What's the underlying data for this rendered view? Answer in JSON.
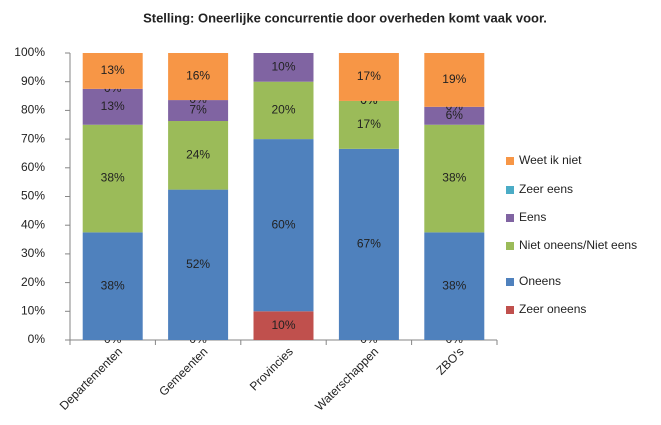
{
  "chart_data": {
    "type": "stacked_bar",
    "title": "Stelling: Oneerlijke concurrentie door overheden komt vaak voor.",
    "categories": [
      "Departementen",
      "Gemeenten",
      "Provincies",
      "Waterschappen",
      "ZBO's"
    ],
    "ylim": [
      0,
      100
    ],
    "yticks": [
      {
        "value": 0,
        "label": "0%"
      },
      {
        "value": 10,
        "label": "10%"
      },
      {
        "value": 20,
        "label": "20%"
      },
      {
        "value": 30,
        "label": "30%"
      },
      {
        "value": 40,
        "label": "40%"
      },
      {
        "value": 50,
        "label": "50%"
      },
      {
        "value": 60,
        "label": "60%"
      },
      {
        "value": 70,
        "label": "70%"
      },
      {
        "value": 80,
        "label": "80%"
      },
      {
        "value": 90,
        "label": "90%"
      },
      {
        "value": 100,
        "label": "100%"
      }
    ],
    "grid": false,
    "legend": "right",
    "series": [
      {
        "name": "Zeer oneens",
        "color": "#c0504d",
        "values": [
          0,
          0,
          10,
          0,
          0
        ],
        "value_labels": [
          "0%",
          "0%",
          "10%",
          "0%",
          "0%"
        ]
      },
      {
        "name": "Oneens",
        "color": "#4f81bd",
        "values": [
          37.5,
          52.4,
          60,
          66.6,
          37.5
        ],
        "value_labels": [
          "38%",
          "52%",
          "60%",
          "67%",
          "38%"
        ]
      },
      {
        "name": "Niet oneens/Niet eens",
        "color": "#9bbb59",
        "values": [
          37.5,
          23.9,
          20,
          16.7,
          37.5
        ],
        "value_labels": [
          "38%",
          "24%",
          "20%",
          "17%",
          "38%"
        ]
      },
      {
        "name": "Eens",
        "color": "#8064a2",
        "values": [
          12.5,
          7.3,
          10,
          0,
          6.25
        ],
        "value_labels": [
          "13%",
          "7%",
          "10%",
          "0%",
          "6%"
        ]
      },
      {
        "name": "Zeer eens",
        "color": "#4bacc6",
        "values": [
          0,
          0,
          0,
          0,
          0
        ],
        "value_labels": [
          "0%",
          "0%",
          null,
          "0%",
          "0%"
        ]
      },
      {
        "name": "Weet ik niet",
        "color": "#f79646",
        "values": [
          12.5,
          16.4,
          0,
          16.7,
          18.75
        ],
        "value_labels": [
          "13%",
          "16%",
          null,
          "17%",
          "19%"
        ]
      }
    ]
  }
}
